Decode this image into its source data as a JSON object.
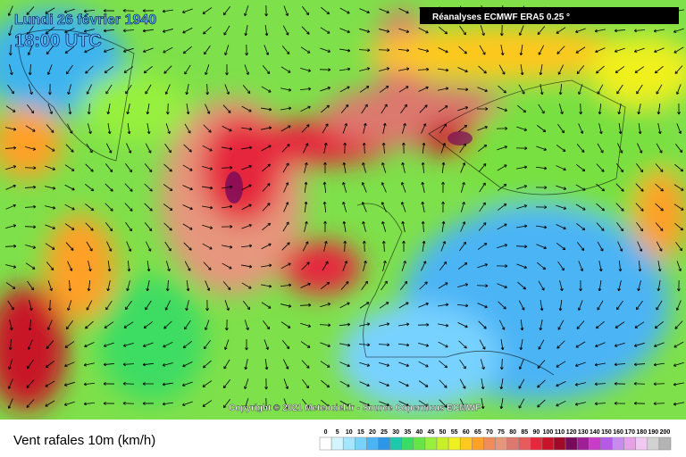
{
  "header": {
    "date": "Lundi 26 février 1940",
    "time": "18:00 UTC",
    "source": "Réanalyses ECMWF ERA5 0.25 °"
  },
  "copyright": "Copyright © 2021 Meteociel.fr - Source Copernicus ECMWF",
  "legend": {
    "title": "Vent rafales 10m (km/h)",
    "ticks": [
      0,
      5,
      10,
      15,
      20,
      25,
      30,
      35,
      40,
      45,
      50,
      55,
      60,
      65,
      70,
      75,
      80,
      85,
      90,
      100,
      110,
      120,
      130,
      140,
      150,
      160,
      170,
      180,
      190,
      200
    ],
    "colors": [
      "#ffffff",
      "#d2f5ff",
      "#a5e6ff",
      "#78d2ff",
      "#4bb4f5",
      "#2d96e6",
      "#1ec8aa",
      "#3cdc64",
      "#64e646",
      "#96f03c",
      "#c8f028",
      "#f0f01e",
      "#ffc81e",
      "#ffa028",
      "#f08c5a",
      "#e6967d",
      "#dc786e",
      "#e65a5a",
      "#e6283c",
      "#c81428",
      "#a00a28",
      "#780a5a",
      "#a01e96",
      "#c83cc8",
      "#b45ae6",
      "#c88cf0",
      "#e6a0e6",
      "#f0c8f0",
      "#d2d2d2",
      "#b4b4b4"
    ]
  }
}
